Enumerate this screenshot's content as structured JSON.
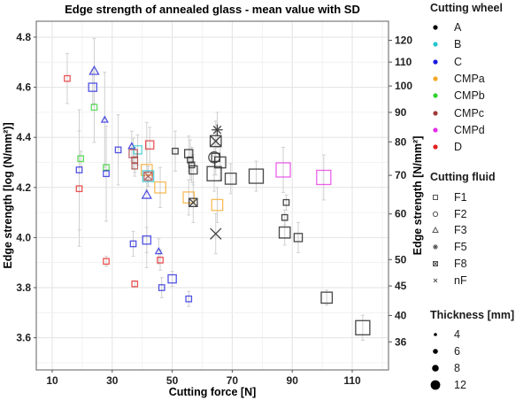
{
  "chart_data": {
    "type": "scatter",
    "title": "Edge strength of annealed glass - mean value with SD",
    "xlabel": "Cutting force [N]",
    "ylabel": "Edge strength [log (N/mm²)]",
    "ylabel_right": "Edge strength [N/mm²]",
    "xlim": [
      5,
      122
    ],
    "ylim": [
      3.45,
      4.87
    ],
    "x_ticks": [
      10,
      30,
      50,
      70,
      90,
      110
    ],
    "y_ticks": [
      3.6,
      3.8,
      4.0,
      4.2,
      4.4,
      4.6,
      4.8
    ],
    "y_ticks_right": [
      36,
      40,
      45,
      50,
      60,
      70,
      80,
      90,
      100,
      110,
      120
    ],
    "grid": true,
    "legend_position": "right",
    "legends": {
      "cutting_wheel": {
        "title": "Cutting wheel",
        "items": [
          {
            "label": "A",
            "color": "#000000"
          },
          {
            "label": "B",
            "color": "#26c6d0"
          },
          {
            "label": "C",
            "color": "#1a1adb"
          },
          {
            "label": "CMPa",
            "color": "#f5a623"
          },
          {
            "label": "CMPb",
            "color": "#2ed12e"
          },
          {
            "label": "CMPc",
            "color": "#a03a3a"
          },
          {
            "label": "CMPd",
            "color": "#e62ee6"
          },
          {
            "label": "D",
            "color": "#e61e1e"
          }
        ]
      },
      "cutting_fluid": {
        "title": "Cutting fluid",
        "items": [
          {
            "label": "F1",
            "shape": "square"
          },
          {
            "label": "F2",
            "shape": "circle"
          },
          {
            "label": "F3",
            "shape": "triangle"
          },
          {
            "label": "F5",
            "shape": "asterisk"
          },
          {
            "label": "F8",
            "shape": "square-x"
          },
          {
            "label": "nF",
            "shape": "cross"
          }
        ]
      },
      "thickness": {
        "title": "Thickness [mm]",
        "items": [
          {
            "label": "4",
            "value": 4
          },
          {
            "label": "6",
            "value": 6
          },
          {
            "label": "8",
            "value": 8
          },
          {
            "label": "12",
            "value": 12
          }
        ]
      }
    },
    "points": [
      {
        "wheel": "D",
        "fluid": "F1",
        "thickness": 4,
        "x": 15.0,
        "y": 4.635,
        "sd": 0.1
      },
      {
        "wheel": "CMPb",
        "fluid": "F1",
        "thickness": 4,
        "x": 19.5,
        "y": 4.315,
        "sd": 0.03
      },
      {
        "wheel": "C",
        "fluid": "F1",
        "thickness": 4,
        "x": 19.0,
        "y": 4.27,
        "sd": 0.24
      },
      {
        "wheel": "D",
        "fluid": "F1",
        "thickness": 4,
        "x": 19.0,
        "y": 4.195,
        "sd": 0.23
      },
      {
        "wheel": "C",
        "fluid": "F3",
        "thickness": 6,
        "x": 24.0,
        "y": 4.665,
        "sd": 0.13
      },
      {
        "wheel": "C",
        "fluid": "F1",
        "thickness": 6,
        "x": 23.5,
        "y": 4.6,
        "sd": 0.07
      },
      {
        "wheel": "CMPb",
        "fluid": "F1",
        "thickness": 4,
        "x": 24.0,
        "y": 4.52,
        "sd": 0.14
      },
      {
        "wheel": "C",
        "fluid": "F3",
        "thickness": 4,
        "x": 27.5,
        "y": 4.47,
        "sd": 0.19
      },
      {
        "wheel": "CMPb",
        "fluid": "F1",
        "thickness": 4,
        "x": 28.0,
        "y": 4.28,
        "sd": 0.01
      },
      {
        "wheel": "C",
        "fluid": "F1",
        "thickness": 4,
        "x": 28.0,
        "y": 4.255,
        "sd": 0.19
      },
      {
        "wheel": "D",
        "fluid": "F1",
        "thickness": 4,
        "x": 28.0,
        "y": 3.905,
        "sd": 0.02
      },
      {
        "wheel": "C",
        "fluid": "F1",
        "thickness": 4,
        "x": 32.0,
        "y": 4.35,
        "sd": 0.14
      },
      {
        "wheel": "C",
        "fluid": "F3",
        "thickness": 4,
        "x": 36.5,
        "y": 4.365,
        "sd": 0.06
      },
      {
        "wheel": "B",
        "fluid": "F1",
        "thickness": 6,
        "x": 38.5,
        "y": 4.35,
        "sd": 0.06
      },
      {
        "wheel": "CMPc",
        "fluid": "F1",
        "thickness": 6,
        "x": 37.0,
        "y": 4.335,
        "sd": 0.06
      },
      {
        "wheel": "CMPc",
        "fluid": "F1",
        "thickness": 4,
        "x": 37.5,
        "y": 4.31,
        "sd": 0.05
      },
      {
        "wheel": "CMPc",
        "fluid": "F1",
        "thickness": 4,
        "x": 37.5,
        "y": 4.285,
        "sd": 0.04
      },
      {
        "wheel": "D",
        "fluid": "F1",
        "thickness": 6,
        "x": 42.5,
        "y": 4.37,
        "sd": 0.07
      },
      {
        "wheel": "CMPa",
        "fluid": "F1",
        "thickness": 8,
        "x": 41.5,
        "y": 4.27,
        "sd": 0.08
      },
      {
        "wheel": "B",
        "fluid": "F1",
        "thickness": 8,
        "x": 42.0,
        "y": 4.245,
        "sd": 0.04
      },
      {
        "wheel": "CMPc",
        "fluid": "F8",
        "thickness": 6,
        "x": 42.0,
        "y": 4.245,
        "sd": 0.04
      },
      {
        "wheel": "C",
        "fluid": "F3",
        "thickness": 6,
        "x": 41.5,
        "y": 4.17,
        "sd": 0.29
      },
      {
        "wheel": "C",
        "fluid": "F1",
        "thickness": 4,
        "x": 37.0,
        "y": 3.975,
        "sd": 0.05
      },
      {
        "wheel": "C",
        "fluid": "F1",
        "thickness": 6,
        "x": 41.5,
        "y": 3.99,
        "sd": 0.05
      },
      {
        "wheel": "D",
        "fluid": "F1",
        "thickness": 4,
        "x": 37.5,
        "y": 3.815,
        "sd": 0.01
      },
      {
        "wheel": "C",
        "fluid": "F3",
        "thickness": 4,
        "x": 45.5,
        "y": 3.945,
        "sd": 0.05
      },
      {
        "wheel": "D",
        "fluid": "F1",
        "thickness": 4,
        "x": 46.0,
        "y": 3.91,
        "sd": 0.04
      },
      {
        "wheel": "C",
        "fluid": "F1",
        "thickness": 6,
        "x": 50.0,
        "y": 3.835,
        "sd": 0.03
      },
      {
        "wheel": "C",
        "fluid": "F1",
        "thickness": 4,
        "x": 46.5,
        "y": 3.8,
        "sd": 0.04
      },
      {
        "wheel": "C",
        "fluid": "F1",
        "thickness": 4,
        "x": 55.5,
        "y": 3.755,
        "sd": 0.03
      },
      {
        "wheel": "CMPa",
        "fluid": "F1",
        "thickness": 8,
        "x": 46.0,
        "y": 4.2,
        "sd": 0.08
      },
      {
        "wheel": "A",
        "fluid": "F1",
        "thickness": 4,
        "x": 51.0,
        "y": 4.345,
        "sd": 0.08
      },
      {
        "wheel": "A",
        "fluid": "F1",
        "thickness": 6,
        "x": 55.5,
        "y": 4.335,
        "sd": 0.07
      },
      {
        "wheel": "A",
        "fluid": "F1",
        "thickness": 4,
        "x": 56.0,
        "y": 4.31,
        "sd": 0.08
      },
      {
        "wheel": "A",
        "fluid": "F1",
        "thickness": 4,
        "x": 56.5,
        "y": 4.29,
        "sd": 0.07
      },
      {
        "wheel": "A",
        "fluid": "F1",
        "thickness": 6,
        "x": 57.0,
        "y": 4.27,
        "sd": 0.06
      },
      {
        "wheel": "CMPa",
        "fluid": "F1",
        "thickness": 8,
        "x": 55.5,
        "y": 4.16,
        "sd": 0.07
      },
      {
        "wheel": "A",
        "fluid": "F8",
        "thickness": 6,
        "x": 57.0,
        "y": 4.14,
        "sd": 0.08
      },
      {
        "wheel": "A",
        "fluid": "F5",
        "thickness": 8,
        "x": 65.0,
        "y": 4.43,
        "sd": 0.07
      },
      {
        "wheel": "A",
        "fluid": "F8",
        "thickness": 8,
        "x": 64.5,
        "y": 4.385,
        "sd": 0.08
      },
      {
        "wheel": "A",
        "fluid": "F2",
        "thickness": 8,
        "x": 64.0,
        "y": 4.32,
        "sd": 0.07
      },
      {
        "wheel": "A",
        "fluid": "F1",
        "thickness": 6,
        "x": 64.5,
        "y": 4.32,
        "sd": 0.07
      },
      {
        "wheel": "A",
        "fluid": "F1",
        "thickness": 8,
        "x": 66.0,
        "y": 4.3,
        "sd": 0.07
      },
      {
        "wheel": "A",
        "fluid": "F1",
        "thickness": 12,
        "x": 64.0,
        "y": 4.255,
        "sd": 0.07
      },
      {
        "wheel": "A",
        "fluid": "F1",
        "thickness": 8,
        "x": 69.5,
        "y": 4.235,
        "sd": 0.06
      },
      {
        "wheel": "A",
        "fluid": "F1",
        "thickness": 12,
        "x": 78.0,
        "y": 4.245,
        "sd": 0.06
      },
      {
        "wheel": "CMPa",
        "fluid": "F1",
        "thickness": 8,
        "x": 65.0,
        "y": 4.13,
        "sd": 0.07
      },
      {
        "wheel": "A",
        "fluid": "nF",
        "thickness": 8,
        "x": 64.5,
        "y": 4.015,
        "sd": 0.08
      },
      {
        "wheel": "CMPd",
        "fluid": "F1",
        "thickness": 12,
        "x": 87.0,
        "y": 4.27,
        "sd": 0.09
      },
      {
        "wheel": "CMPd",
        "fluid": "F1",
        "thickness": 12,
        "x": 100.5,
        "y": 4.24,
        "sd": 0.09
      },
      {
        "wheel": "A",
        "fluid": "F1",
        "thickness": 4,
        "x": 88.0,
        "y": 4.14,
        "sd": 0.03
      },
      {
        "wheel": "A",
        "fluid": "F1",
        "thickness": 4,
        "x": 87.5,
        "y": 4.08,
        "sd": 0.03
      },
      {
        "wheel": "A",
        "fluid": "F1",
        "thickness": 8,
        "x": 87.5,
        "y": 4.02,
        "sd": 0.05
      },
      {
        "wheel": "A",
        "fluid": "F1",
        "thickness": 6,
        "x": 92.0,
        "y": 4.0,
        "sd": 0.06
      },
      {
        "wheel": "A",
        "fluid": "F1",
        "thickness": 8,
        "x": 101.5,
        "y": 3.76,
        "sd": 0.03
      },
      {
        "wheel": "A",
        "fluid": "F1",
        "thickness": 12,
        "x": 113.5,
        "y": 3.64,
        "sd": 0.05
      }
    ]
  }
}
